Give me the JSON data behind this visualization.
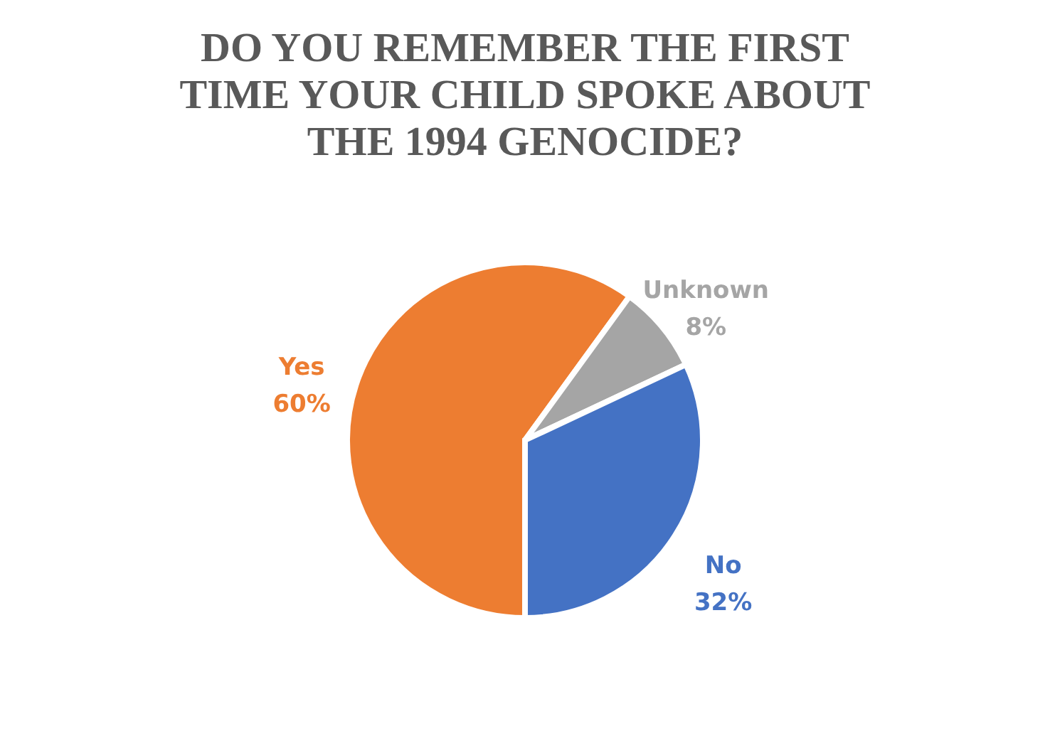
{
  "chart_data": {
    "type": "pie",
    "title": [
      "DO YOU REMEMBER THE FIRST",
      "TIME YOUR CHILD SPOKE ABOUT",
      "THE 1994 GENOCIDE?"
    ],
    "categories": [
      "Yes",
      "Unknown",
      "No"
    ],
    "values": [
      60,
      8,
      32
    ],
    "value_labels": [
      "60%",
      "8%",
      "32%"
    ],
    "colors": [
      "#ed7d31",
      "#a5a5a5",
      "#4472c4"
    ]
  }
}
